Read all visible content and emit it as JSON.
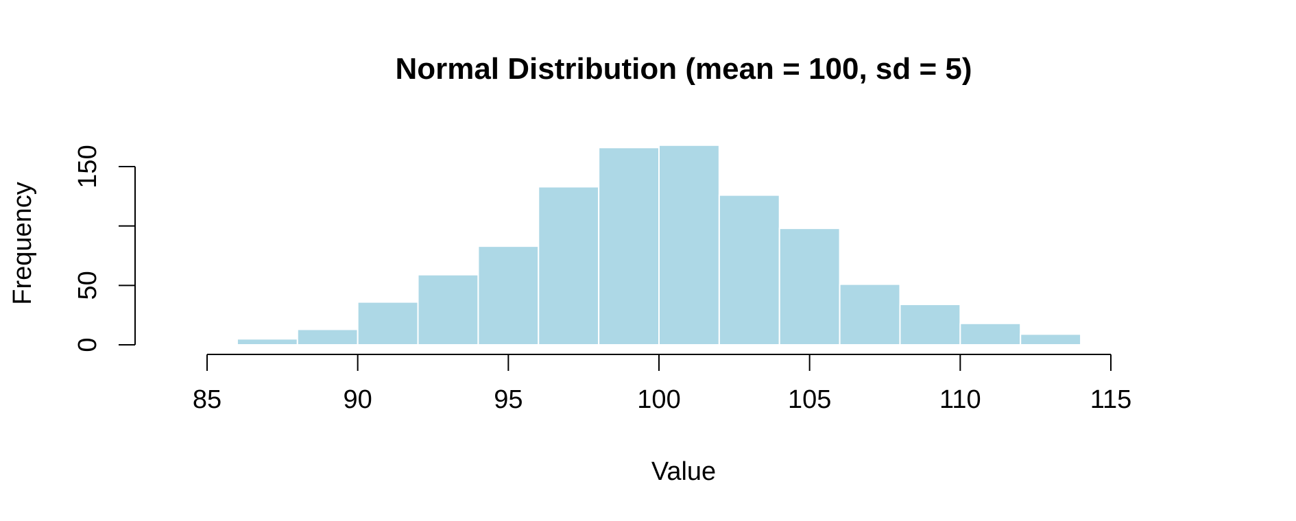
{
  "chart_data": {
    "type": "bar",
    "subtype": "histogram",
    "title": "Normal Distribution (mean = 100, sd = 5)",
    "xlabel": "Value",
    "ylabel": "Frequency",
    "bin_edges": [
      86,
      88,
      90,
      92,
      94,
      96,
      98,
      100,
      102,
      104,
      106,
      108,
      110,
      112,
      114
    ],
    "values": [
      5,
      13,
      36,
      59,
      83,
      133,
      166,
      168,
      126,
      98,
      51,
      34,
      18,
      9
    ],
    "xlim": [
      85,
      115
    ],
    "ylim": [
      0,
      150
    ],
    "x_ticks": [
      85,
      90,
      95,
      100,
      105,
      110,
      115
    ],
    "x_tick_labels": [
      "85",
      "90",
      "95",
      "100",
      "105",
      "110",
      "115"
    ],
    "y_ticks": [
      0,
      50,
      100,
      150
    ],
    "y_tick_labels": [
      "0",
      "50",
      "",
      "150"
    ],
    "bar_color": "#add8e6",
    "bar_border_color": "#ffffff",
    "grid": false,
    "legend": "none"
  }
}
